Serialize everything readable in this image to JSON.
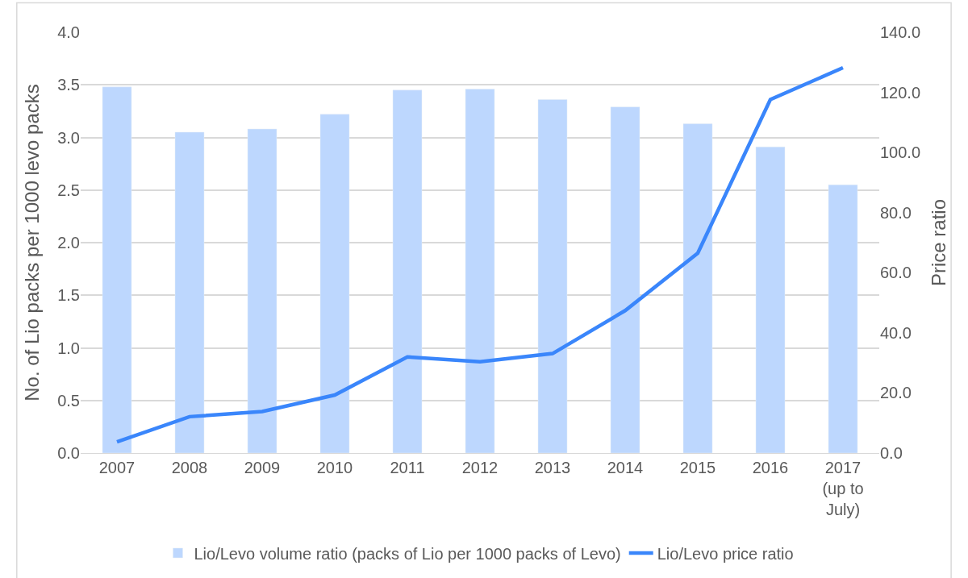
{
  "chart_data": {
    "type": "bar",
    "categories": [
      "2007",
      "2008",
      "2009",
      "2010",
      "2011",
      "2012",
      "2013",
      "2014",
      "2015",
      "2016",
      "2017 (up to July)"
    ],
    "series": [
      {
        "name": "Lio/Levo volume ratio (packs of Lio per 1000 packs of Levo)",
        "color": "#bdd7fe",
        "values": [
          3.48,
          3.05,
          3.08,
          3.22,
          3.45,
          3.46,
          3.36,
          3.29,
          3.13,
          2.91,
          2.55
        ]
      },
      {
        "name": "Lio/Levo price ratio",
        "type": "line",
        "axis": "y2",
        "color": "#3a86fb",
        "values": [
          3.7,
          12.1,
          13.8,
          19.3,
          32.0,
          30.4,
          33.1,
          47.4,
          66.5,
          117.6,
          128.2
        ]
      }
    ],
    "ylabel": "No. of Lio packs per 1000 levo packs",
    "y2label": "Price ratio",
    "ylim": [
      0,
      4
    ],
    "yticks": [
      {
        "value": 0,
        "label": "0.0"
      },
      {
        "value": 0.5,
        "label": "0.5"
      },
      {
        "value": 1,
        "label": "1.0"
      },
      {
        "value": 1.5,
        "label": "1.5"
      },
      {
        "value": 2,
        "label": "2.0"
      },
      {
        "value": 2.5,
        "label": "2.5"
      },
      {
        "value": 3,
        "label": "3.0"
      },
      {
        "value": 3.5,
        "label": "3.5"
      },
      {
        "value": 4,
        "label": "4.0"
      }
    ],
    "y2lim": [
      0,
      140
    ],
    "y2ticks": [
      {
        "value": 0,
        "label": "0.0"
      },
      {
        "value": 20,
        "label": "20.0"
      },
      {
        "value": 40,
        "label": "40.0"
      },
      {
        "value": 60,
        "label": "60.0"
      },
      {
        "value": 80,
        "label": "80.0"
      },
      {
        "value": 100,
        "label": "100.0"
      },
      {
        "value": 120,
        "label": "120.0"
      },
      {
        "value": 140,
        "label": "140.0"
      }
    ],
    "grid": "y",
    "legend": "bottom",
    "marker": "none",
    "line_style": "solid"
  }
}
